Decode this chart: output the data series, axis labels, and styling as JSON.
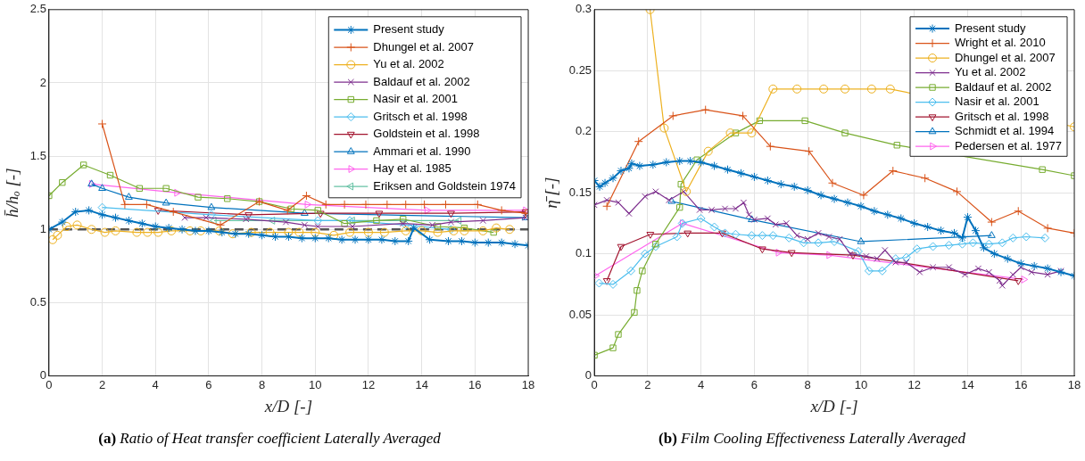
{
  "chart_data": [
    {
      "type": "line",
      "title": "(a) Ratio of Heat transfer coefficient Laterally Averaged",
      "xlabel": "x/D [-]",
      "ylabel": "h̄/hₒ [-]",
      "xlim": [
        0,
        18
      ],
      "ylim": [
        0,
        2.5
      ],
      "xticks": [
        0,
        2,
        4,
        6,
        8,
        10,
        12,
        14,
        16,
        18
      ],
      "yticks": [
        0,
        0.5,
        1,
        1.5,
        2,
        2.5
      ],
      "grid": true,
      "legend": "top right",
      "ref_lines": [
        {
          "axis": "y",
          "value": 1,
          "color": "#555555",
          "line_style": "dashed"
        }
      ],
      "series": [
        {
          "name": "Present study",
          "color": "#0072bd",
          "marker": "cross",
          "x": [
            0,
            0.5,
            1,
            1.5,
            2,
            2.5,
            3,
            3.5,
            4,
            4.5,
            5,
            5.5,
            6,
            6.5,
            7,
            7.5,
            8,
            8.5,
            9,
            9.5,
            10,
            10.5,
            11,
            11.5,
            12,
            12.5,
            13,
            13.5,
            13.7,
            14.3,
            15,
            15.5,
            16,
            16.5,
            17,
            17.5,
            18
          ],
          "values": [
            1.0,
            1.05,
            1.12,
            1.13,
            1.1,
            1.08,
            1.06,
            1.04,
            1.02,
            1.01,
            1.0,
            0.99,
            0.99,
            0.98,
            0.97,
            0.97,
            0.96,
            0.95,
            0.95,
            0.94,
            0.94,
            0.94,
            0.93,
            0.93,
            0.93,
            0.93,
            0.92,
            0.92,
            1.01,
            0.93,
            0.92,
            0.92,
            0.91,
            0.91,
            0.91,
            0.9,
            0.89
          ]
        },
        {
          "name": "Dhungel et al. 2007",
          "color": "#d95319",
          "marker": "plus",
          "x": [
            2,
            2.85,
            3.67,
            4.67,
            6.44,
            7.9,
            8.96,
            9.67,
            10.4,
            11.1,
            11.9,
            12.7,
            13.4,
            14.1,
            14.9,
            16.1,
            17,
            17.9
          ],
          "values": [
            1.72,
            1.17,
            1.17,
            1.12,
            1.03,
            1.19,
            1.13,
            1.23,
            1.17,
            1.17,
            1.17,
            1.17,
            1.17,
            1.17,
            1.17,
            1.17,
            1.13,
            1.11
          ]
        },
        {
          "name": "Yu et al. 2002",
          "color": "#edb120",
          "marker": "circle",
          "x": [
            0.14,
            0.32,
            0.67,
            1.06,
            1.6,
            2.1,
            2.5,
            3.3,
            3.7,
            4.1,
            4.6,
            5.3,
            5.7,
            6.4,
            6.9,
            7.6,
            8.3,
            9,
            9.4,
            10,
            10.7,
            11.3,
            12,
            12.6,
            13.4,
            14,
            14.6,
            15.2,
            15.6,
            16.3,
            16.8,
            17.3
          ],
          "values": [
            0.93,
            0.96,
            1.02,
            1.03,
            1.0,
            0.98,
            0.99,
            0.98,
            0.98,
            0.98,
            0.99,
            0.99,
            0.99,
            0.99,
            0.97,
            0.98,
            0.98,
            0.98,
            0.98,
            0.98,
            0.96,
            0.98,
            0.98,
            0.98,
            0.99,
            0.99,
            0.98,
            0.99,
            0.99,
            0.99,
            1.01,
            1.0
          ]
        },
        {
          "name": "Baldauf et al. 2002",
          "color": "#7e2f8e",
          "marker": "x",
          "x": [
            5.1,
            5.9,
            7.4,
            8.9,
            9.6,
            10.1,
            11.4,
            13.3,
            14.4,
            15.1,
            16.3,
            17.9
          ],
          "values": [
            1.08,
            1.08,
            1.07,
            1.05,
            1.03,
            1.02,
            1.02,
            1.04,
            1.03,
            1.05,
            1.06,
            1.08
          ]
        },
        {
          "name": "Nasir et al. 2001",
          "color": "#77ac30",
          "marker": "square",
          "x": [
            0,
            0.5,
            1.3,
            2.3,
            3.4,
            4.4,
            5.6,
            6.7,
            7.9,
            9.1,
            10.1,
            11.1,
            12.3,
            13.3,
            14.6,
            15.6,
            16.7
          ],
          "values": [
            1.23,
            1.32,
            1.44,
            1.37,
            1.28,
            1.28,
            1.22,
            1.21,
            1.19,
            1.14,
            1.13,
            1.04,
            1.06,
            1.07,
            1.02,
            1.01,
            0.98
          ]
        },
        {
          "name": "Gritsch et al. 1998",
          "color": "#4dbeee",
          "marker": "diamond",
          "x": [
            2,
            6.1,
            10.1,
            11.3,
            13.4,
            15.1
          ],
          "values": [
            1.15,
            1.1,
            1.06,
            1.06,
            1.03,
            1.0
          ]
        },
        {
          "name": "Goldstein et al. 1998",
          "color": "#a2142f",
          "marker": "triangle-down",
          "x": [
            4.1,
            7.5,
            10.2,
            12.4,
            15.1,
            17.9
          ],
          "values": [
            1.13,
            1.1,
            1.11,
            1.11,
            1.11,
            1.12
          ]
        },
        {
          "name": "Ammari et al. 1990",
          "color": "#0072bd",
          "marker": "triangle",
          "x": [
            1.6,
            2,
            3,
            4.4,
            6.1,
            9.6,
            17.9
          ],
          "values": [
            1.31,
            1.28,
            1.22,
            1.18,
            1.15,
            1.11,
            1.08
          ]
        },
        {
          "name": "Hay et al. 1985",
          "color": "#ff66ee",
          "marker": "triangle-right",
          "x": [
            1.6,
            4.8,
            9.7,
            14.2,
            17.9
          ],
          "values": [
            1.31,
            1.25,
            1.17,
            1.13,
            1.13
          ]
        },
        {
          "name": "Eriksen and Goldstein 1974",
          "color": "#66c2a5",
          "marker": "triangle-left",
          "x": [
            6.2,
            8.4,
            11.4,
            15.4
          ],
          "values": [
            1.06,
            1.06,
            1.06,
            1.06
          ]
        }
      ]
    },
    {
      "type": "line",
      "title": "(b) Film Cooling Effectiveness Laterally Averaged",
      "xlabel": "x/D [-]",
      "ylabel": "η̄ [-]",
      "xlim": [
        0,
        18
      ],
      "ylim": [
        0,
        0.3
      ],
      "xticks": [
        0,
        2,
        4,
        6,
        8,
        10,
        12,
        14,
        16,
        18
      ],
      "yticks": [
        0,
        0.05,
        0.1,
        0.15,
        0.2,
        0.25,
        0.3
      ],
      "grid": true,
      "legend": "top right",
      "series": [
        {
          "name": "Present study",
          "color": "#0072bd",
          "marker": "cross",
          "x": [
            0,
            0.2,
            0.4,
            0.7,
            1,
            1.3,
            1.4,
            1.7,
            2.2,
            2.7,
            3.2,
            3.6,
            4,
            4.5,
            5,
            5.5,
            6,
            6.5,
            7,
            7.5,
            8,
            8.5,
            9,
            9.5,
            10,
            10.5,
            11,
            11.5,
            12,
            12.5,
            13,
            13.5,
            13.8,
            14,
            14.3,
            14.6,
            15,
            15.5,
            16,
            16.5,
            17,
            17.5,
            18
          ],
          "values": [
            0.16,
            0.155,
            0.158,
            0.162,
            0.168,
            0.17,
            0.174,
            0.172,
            0.173,
            0.175,
            0.176,
            0.176,
            0.175,
            0.172,
            0.169,
            0.166,
            0.163,
            0.16,
            0.157,
            0.155,
            0.152,
            0.148,
            0.145,
            0.142,
            0.139,
            0.135,
            0.132,
            0.129,
            0.125,
            0.122,
            0.119,
            0.117,
            0.113,
            0.13,
            0.119,
            0.105,
            0.1,
            0.096,
            0.092,
            0.09,
            0.088,
            0.085,
            0.082
          ]
        },
        {
          "name": "Wright et al. 2010",
          "color": "#d95319",
          "marker": "plus",
          "x": [
            0.47,
            1.66,
            2.95,
            4.17,
            5.57,
            6.6,
            8.05,
            8.93,
            10.1,
            11.2,
            12.4,
            13.6,
            14.9,
            15.9,
            17,
            18
          ],
          "values": [
            0.139,
            0.192,
            0.213,
            0.218,
            0.213,
            0.188,
            0.184,
            0.158,
            0.148,
            0.168,
            0.162,
            0.151,
            0.126,
            0.135,
            0.121,
            0.117
          ]
        },
        {
          "name": "Dhungel et al. 2007",
          "color": "#edb120",
          "marker": "circle",
          "x": [
            2.09,
            2.62,
            3.45,
            4.27,
            5.1,
            5.9,
            6.7,
            7.6,
            8.6,
            9.4,
            10.4,
            11.1,
            18
          ],
          "values": [
            0.3,
            0.203,
            0.151,
            0.184,
            0.199,
            0.199,
            0.235,
            0.235,
            0.235,
            0.235,
            0.235,
            0.235,
            0.204
          ]
        },
        {
          "name": "Yu et al. 2002",
          "color": "#7e2f8e",
          "marker": "x",
          "x": [
            0,
            0.47,
            0.9,
            1.3,
            1.9,
            2.3,
            2.8,
            3.35,
            3.95,
            4.4,
            4.9,
            5.3,
            5.6,
            5.8,
            6,
            6.5,
            6.8,
            7.2,
            7.6,
            8,
            8.4,
            8.8,
            9.2,
            9.6,
            10.2,
            10.6,
            10.9,
            11.3,
            11.7,
            12.2,
            12.7,
            13.3,
            13.9,
            14.4,
            14.8,
            15.2,
            15.3,
            15.7,
            16,
            16.4,
            17,
            17.5
          ],
          "values": [
            0.14,
            0.144,
            0.142,
            0.133,
            0.147,
            0.151,
            0.144,
            0.151,
            0.136,
            0.136,
            0.137,
            0.137,
            0.142,
            0.132,
            0.128,
            0.129,
            0.124,
            0.125,
            0.115,
            0.112,
            0.117,
            0.114,
            0.112,
            0.1,
            0.098,
            0.096,
            0.103,
            0.093,
            0.093,
            0.085,
            0.089,
            0.089,
            0.083,
            0.088,
            0.085,
            0.078,
            0.074,
            0.083,
            0.089,
            0.085,
            0.083,
            0.086
          ]
        },
        {
          "name": "Baldauf et al. 2002",
          "color": "#77ac30",
          "marker": "square",
          "x": [
            0,
            0.7,
            0.9,
            1.5,
            1.6,
            1.8,
            2.3,
            3.2,
            3.25,
            3.85,
            5.3,
            6.2,
            7.9,
            9.4,
            11.35,
            16.8,
            18
          ],
          "values": [
            0.017,
            0.023,
            0.034,
            0.052,
            0.07,
            0.086,
            0.108,
            0.138,
            0.157,
            0.177,
            0.199,
            0.209,
            0.209,
            0.199,
            0.189,
            0.169,
            0.164
          ]
        },
        {
          "name": "Nasir et al. 2001",
          "color": "#4dbeee",
          "marker": "diamond",
          "x": [
            0.18,
            0.7,
            1.37,
            1.9,
            2.3,
            3.1,
            3.3,
            4,
            4.5,
            4.9,
            5.3,
            5.9,
            6.3,
            6.7,
            7.3,
            7.85,
            8.4,
            9,
            9.9,
            10.3,
            10.8,
            11.3,
            11.7,
            12.1,
            12.7,
            13.3,
            13.8,
            14.2,
            14.8,
            15.3,
            15.7,
            16.2,
            16.9
          ],
          "values": [
            0.076,
            0.075,
            0.086,
            0.1,
            0.106,
            0.114,
            0.125,
            0.129,
            0.122,
            0.117,
            0.116,
            0.115,
            0.115,
            0.115,
            0.113,
            0.109,
            0.109,
            0.11,
            0.102,
            0.086,
            0.086,
            0.096,
            0.097,
            0.104,
            0.106,
            0.107,
            0.108,
            0.109,
            0.108,
            0.109,
            0.113,
            0.114,
            0.113
          ]
        },
        {
          "name": "Gritsch et al. 1998",
          "color": "#a2142f",
          "marker": "triangle-down",
          "x": [
            0.47,
            1,
            2.1,
            3.5,
            4.8,
            6.3,
            7.4,
            9.7,
            15.9
          ],
          "values": [
            0.078,
            0.106,
            0.116,
            0.117,
            0.117,
            0.104,
            0.101,
            0.099,
            0.078
          ]
        },
        {
          "name": "Schmidt et al. 1994",
          "color": "#0072bd",
          "marker": "triangle",
          "x": [
            2.9,
            5.9,
            10,
            14.9
          ],
          "values": [
            0.143,
            0.128,
            0.11,
            0.115
          ]
        },
        {
          "name": "Pedersen et al. 1977",
          "color": "#ff66ee",
          "marker": "triangle-right",
          "x": [
            0.04,
            3.3,
            6.9,
            8.8,
            16.1
          ],
          "values": [
            0.082,
            0.125,
            0.101,
            0.099,
            0.079
          ]
        }
      ]
    }
  ]
}
